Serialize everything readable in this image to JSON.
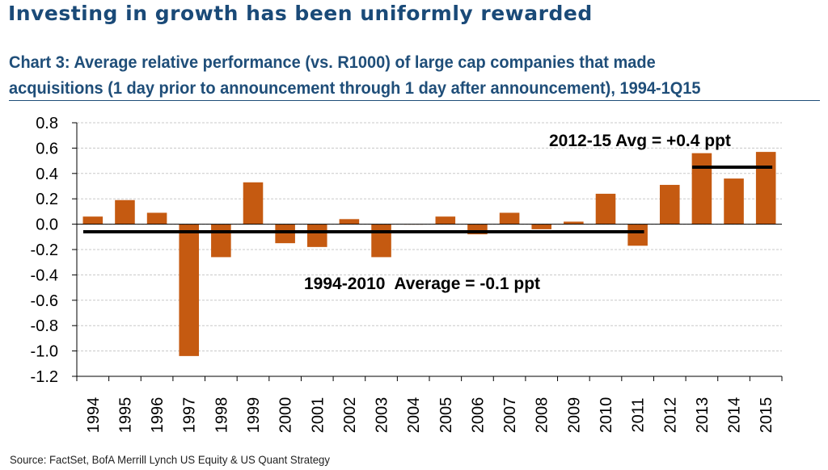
{
  "headline": "Investing in growth has been uniformly rewarded",
  "chart_title_line1": "Chart 3: Average relative performance (vs. R1000) of large cap companies that made",
  "chart_title_line2": "acquisitions (1 day prior to announcement through 1 day after announcement), 1994-1Q15",
  "source": "Source: FactSet, BofA Merrill Lynch US Equity & US Quant Strategy",
  "colors": {
    "bar": "#c55a11",
    "text_dark_blue": "#1f4e79",
    "average_line": "#000000",
    "grid": "#c8c8c8"
  },
  "chart_data": {
    "type": "bar",
    "title": "Chart 3: Average relative performance (vs. R1000) of large cap companies that made acquisitions (1 day prior to announcement through 1 day after announcement), 1994-1Q15",
    "xlabel": "",
    "ylabel": "",
    "ylim": [
      -1.2,
      0.8
    ],
    "yticks": [
      0.8,
      0.6,
      0.4,
      0.2,
      0.0,
      -0.2,
      -0.4,
      -0.6,
      -0.8,
      -1.0,
      -1.2
    ],
    "ytick_labels": [
      "0.8",
      "0.6",
      "0.4",
      "0.2",
      "0.0",
      "-0.2",
      "-0.4",
      "-0.6",
      "-0.8",
      "-1.0",
      "-1.2"
    ],
    "grid": true,
    "categories": [
      "1994",
      "1995",
      "1996",
      "1997",
      "1998",
      "1999",
      "2000",
      "2001",
      "2002",
      "2003",
      "2004",
      "2005",
      "2006",
      "2007",
      "2008",
      "2009",
      "2010",
      "2011",
      "2012",
      "2013",
      "2014",
      "2015"
    ],
    "values": [
      0.06,
      0.19,
      0.09,
      -1.04,
      -0.26,
      0.33,
      -0.15,
      -0.18,
      0.04,
      -0.26,
      0.0,
      0.06,
      -0.08,
      0.09,
      -0.04,
      0.02,
      0.24,
      -0.17,
      0.31,
      0.56,
      0.36,
      0.57
    ],
    "reference_lines": [
      {
        "name": "1994-2010 average",
        "value": -0.06,
        "from": "1994",
        "to": "2011"
      },
      {
        "name": "2012-15 average",
        "value": 0.45,
        "from": "2013",
        "to": "2015"
      }
    ],
    "annotations": [
      {
        "text": "2012-15 Avg = +0.4 ppt"
      },
      {
        "text": "1994-2010  Average = -0.1 ppt"
      }
    ]
  }
}
